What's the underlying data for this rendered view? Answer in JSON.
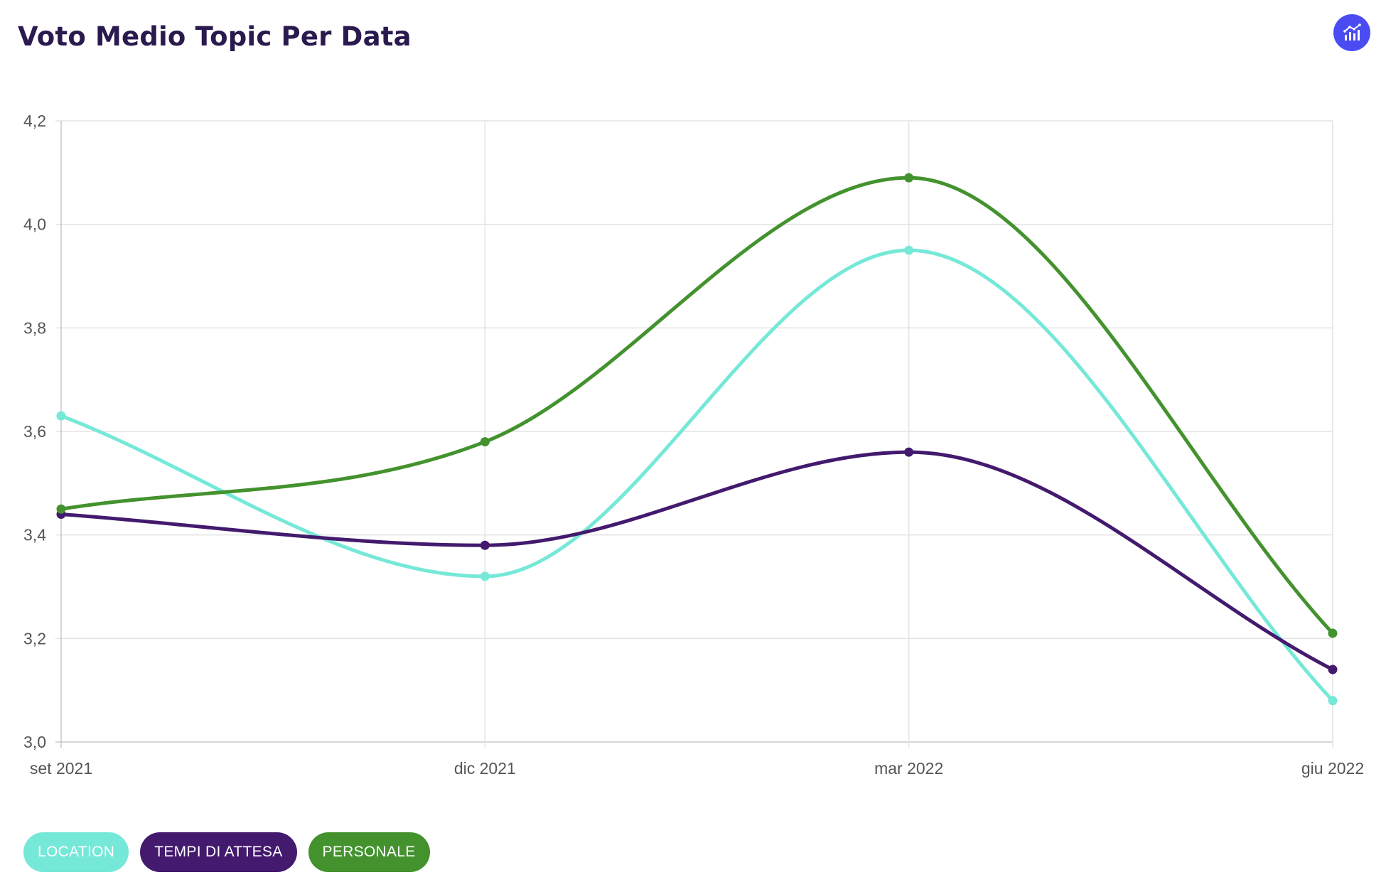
{
  "header": {
    "title": "Voto Medio Topic Per Data",
    "chart_type_icon": "line-chart-icon",
    "chart_type_button_color": "#4a4cf2"
  },
  "chart_data": {
    "type": "line",
    "title": "Voto Medio Topic Per Data",
    "xlabel": "",
    "ylabel": "",
    "curve": "smooth",
    "grid": true,
    "legend_placement": "bottom-left",
    "categories": [
      "set 2021",
      "dic 2021",
      "mar 2022",
      "giu 2022"
    ],
    "ylim": [
      3.0,
      4.2
    ],
    "yticks": [
      "3,0",
      "3,2",
      "3,4",
      "3,6",
      "3,8",
      "4,0",
      "4,2"
    ],
    "ytick_values": [
      3.0,
      3.2,
      3.4,
      3.6,
      3.8,
      4.0,
      4.2
    ],
    "series": [
      {
        "name": "LOCATION",
        "color": "#76e8d8",
        "values": [
          3.63,
          3.32,
          3.95,
          3.08
        ]
      },
      {
        "name": "TEMPI DI ATTESA",
        "color": "#431a6e",
        "values": [
          3.44,
          3.38,
          3.56,
          3.14
        ]
      },
      {
        "name": "PERSONALE",
        "color": "#43922e",
        "values": [
          3.45,
          3.58,
          4.09,
          3.21
        ]
      }
    ]
  }
}
